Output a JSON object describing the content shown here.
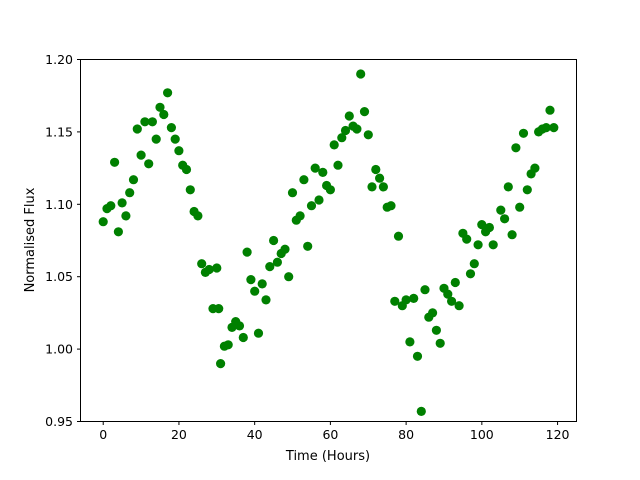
{
  "figure": {
    "background": "#ffffff",
    "text_color": "#000000",
    "axis_color": "#000000"
  },
  "chart_data": {
    "type": "scatter",
    "title": "",
    "xlabel": "Time (Hours)",
    "ylabel": "Normalised Flux",
    "marker_color": "#008000",
    "marker_shape": "circle",
    "grid": false,
    "legend": "none",
    "xlim": [
      -6,
      125
    ],
    "ylim": [
      0.95,
      1.2
    ],
    "x_ticks": [
      0,
      20,
      40,
      60,
      80,
      100,
      120
    ],
    "x_tick_labels": [
      "0",
      "20",
      "40",
      "60",
      "80",
      "100",
      "120"
    ],
    "y_ticks": [
      0.95,
      1.0,
      1.05,
      1.1,
      1.15,
      1.2
    ],
    "y_tick_labels": [
      "0.95",
      "1.00",
      "1.05",
      "1.10",
      "1.15",
      "1.20"
    ],
    "points": [
      [
        0,
        1.088
      ],
      [
        1,
        1.097
      ],
      [
        2,
        1.099
      ],
      [
        3,
        1.129
      ],
      [
        4,
        1.081
      ],
      [
        5,
        1.101
      ],
      [
        6,
        1.092
      ],
      [
        7,
        1.108
      ],
      [
        8,
        1.117
      ],
      [
        9,
        1.152
      ],
      [
        10,
        1.134
      ],
      [
        11,
        1.157
      ],
      [
        12,
        1.128
      ],
      [
        13,
        1.157
      ],
      [
        14,
        1.145
      ],
      [
        15,
        1.167
      ],
      [
        16,
        1.162
      ],
      [
        17,
        1.177
      ],
      [
        18,
        1.153
      ],
      [
        19,
        1.145
      ],
      [
        20,
        1.137
      ],
      [
        21,
        1.127
      ],
      [
        22,
        1.124
      ],
      [
        23,
        1.11
      ],
      [
        24,
        1.095
      ],
      [
        25,
        1.092
      ],
      [
        26,
        1.059
      ],
      [
        27,
        1.053
      ],
      [
        28,
        1.055
      ],
      [
        29,
        1.028
      ],
      [
        30,
        1.056
      ],
      [
        30.5,
        1.028
      ],
      [
        31,
        0.99
      ],
      [
        32,
        1.002
      ],
      [
        33,
        1.003
      ],
      [
        34,
        1.015
      ],
      [
        35,
        1.019
      ],
      [
        36,
        1.016
      ],
      [
        37,
        1.008
      ],
      [
        38,
        1.067
      ],
      [
        39,
        1.048
      ],
      [
        40,
        1.04
      ],
      [
        41,
        1.011
      ],
      [
        42,
        1.045
      ],
      [
        43,
        1.034
      ],
      [
        44,
        1.057
      ],
      [
        45,
        1.075
      ],
      [
        46,
        1.06
      ],
      [
        47,
        1.066
      ],
      [
        48,
        1.069
      ],
      [
        49,
        1.05
      ],
      [
        50,
        1.108
      ],
      [
        51,
        1.089
      ],
      [
        52,
        1.092
      ],
      [
        53,
        1.117
      ],
      [
        54,
        1.071
      ],
      [
        55,
        1.099
      ],
      [
        56,
        1.125
      ],
      [
        57,
        1.103
      ],
      [
        58,
        1.122
      ],
      [
        59,
        1.113
      ],
      [
        60,
        1.11
      ],
      [
        61,
        1.141
      ],
      [
        62,
        1.127
      ],
      [
        63,
        1.146
      ],
      [
        64,
        1.151
      ],
      [
        65,
        1.161
      ],
      [
        66,
        1.154
      ],
      [
        67,
        1.152
      ],
      [
        68,
        1.19
      ],
      [
        69,
        1.164
      ],
      [
        70,
        1.148
      ],
      [
        71,
        1.112
      ],
      [
        72,
        1.124
      ],
      [
        73,
        1.118
      ],
      [
        74,
        1.112
      ],
      [
        75,
        1.098
      ],
      [
        76,
        1.099
      ],
      [
        77,
        1.033
      ],
      [
        78,
        1.078
      ],
      [
        79,
        1.03
      ],
      [
        80,
        1.034
      ],
      [
        81,
        1.005
      ],
      [
        82,
        1.035
      ],
      [
        83,
        0.995
      ],
      [
        84,
        0.957
      ],
      [
        85,
        1.041
      ],
      [
        86,
        1.022
      ],
      [
        87,
        1.025
      ],
      [
        88,
        1.013
      ],
      [
        89,
        1.004
      ],
      [
        90,
        1.042
      ],
      [
        91,
        1.038
      ],
      [
        92,
        1.033
      ],
      [
        93,
        1.046
      ],
      [
        94,
        1.03
      ],
      [
        95,
        1.08
      ],
      [
        96,
        1.076
      ],
      [
        97,
        1.052
      ],
      [
        98,
        1.059
      ],
      [
        99,
        1.072
      ],
      [
        100,
        1.086
      ],
      [
        101,
        1.081
      ],
      [
        102,
        1.084
      ],
      [
        103,
        1.072
      ],
      [
        105,
        1.096
      ],
      [
        106,
        1.09
      ],
      [
        107,
        1.112
      ],
      [
        108,
        1.079
      ],
      [
        109,
        1.139
      ],
      [
        110,
        1.098
      ],
      [
        111,
        1.149
      ],
      [
        112,
        1.11
      ],
      [
        113,
        1.121
      ],
      [
        114,
        1.125
      ],
      [
        115,
        1.15
      ],
      [
        116,
        1.152
      ],
      [
        117,
        1.153
      ],
      [
        118,
        1.165
      ],
      [
        119,
        1.153
      ]
    ]
  }
}
